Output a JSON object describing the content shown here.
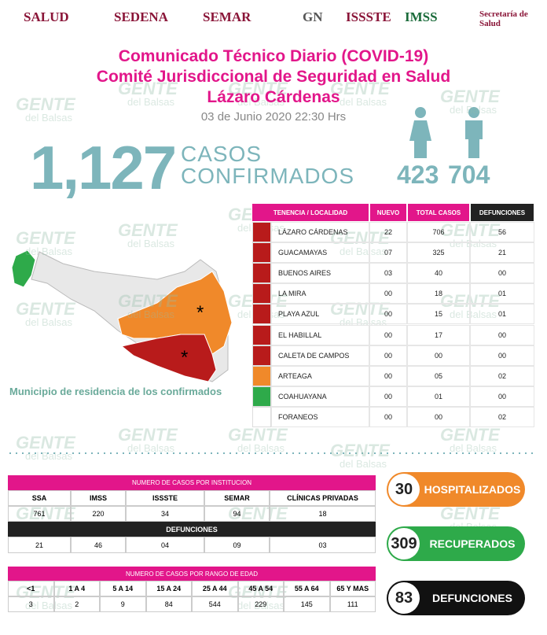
{
  "header": {
    "logos": [
      "SALUD",
      "SEDENA",
      "SEMAR",
      "GN",
      "ISSSTE",
      "IMSS",
      "Secretaría de Salud"
    ]
  },
  "title": [
    "Comunicado Técnico Diario (COVID-19)",
    "Comité Jurisdiccional de Seguridad en Salud",
    "Lázaro Cárdenas"
  ],
  "date": "03 de Junio 2020 22:30 Hrs",
  "confirmed": {
    "total": "1,127",
    "label": [
      "CASOS",
      "CONFIRMADOS"
    ],
    "women": "423",
    "men": "704"
  },
  "localities": {
    "columns": [
      "TENENCIA / LOCALIDAD",
      "NUEVO",
      "TOTAL CASOS",
      "DEFUNCIONES"
    ],
    "rows": [
      [
        "LÁZARO CÁRDENAS",
        "22",
        "706",
        "56"
      ],
      [
        "GUACAMAYAS",
        "07",
        "325",
        "21"
      ],
      [
        "BUENOS AIRES",
        "03",
        "40",
        "00"
      ],
      [
        "LA MIRA",
        "00",
        "18",
        "01"
      ],
      [
        "PLAYA AZUL",
        "00",
        "15",
        "01"
      ],
      [
        "EL HABILLAL",
        "00",
        "17",
        "00"
      ],
      [
        "CALETA DE CAMPOS",
        "00",
        "00",
        "00"
      ],
      [
        "ARTEAGA",
        "00",
        "05",
        "02"
      ],
      [
        "COAHUAYANA",
        "00",
        "01",
        "00"
      ],
      [
        "FORANEOS",
        "00",
        "00",
        "02"
      ]
    ]
  },
  "map_caption": "Municipio de residencia de los confirmados",
  "institutions": {
    "title": "NUMERO DE CASOS POR INSTITUCION",
    "columns": [
      "SSA",
      "IMSS",
      "ISSSTE",
      "SEMAR",
      "CLÍNICAS PRIVADAS"
    ],
    "cases": [
      "761",
      "220",
      "34",
      "94",
      "18"
    ],
    "deaths_title": "DEFUNCIONES",
    "deaths": [
      "21",
      "46",
      "04",
      "09",
      "03"
    ]
  },
  "age": {
    "title": "NUMERO DE CASOS POR RANGO DE EDAD",
    "columns": [
      "<1",
      "1 A 4",
      "5 A 14",
      "15 A 24",
      "25 A 44",
      "45 A 54",
      "55 A 64",
      "65 Y MAS"
    ],
    "cases": [
      "3",
      "2",
      "9",
      "84",
      "544",
      "229",
      "145",
      "111"
    ]
  },
  "summary": [
    {
      "value": "30",
      "label": "HOSPITALIZADOS"
    },
    {
      "value": "309",
      "label": "RECUPERADOS"
    },
    {
      "value": "83",
      "label": "DEFUNCIONES"
    }
  ],
  "watermark": [
    "GENTE",
    "del Balsas"
  ]
}
